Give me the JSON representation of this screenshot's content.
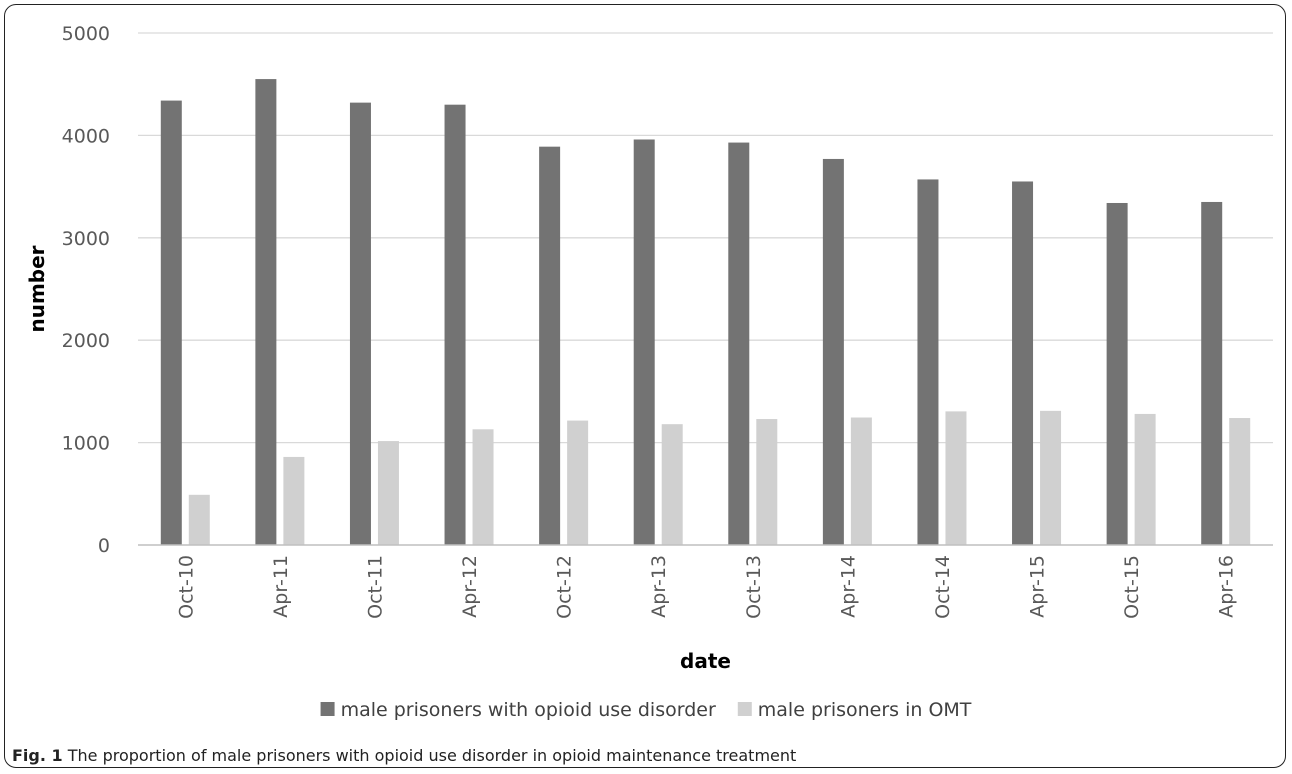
{
  "caption": {
    "label": "Fig. 1",
    "text": "The proportion of male prisoners with opioid use disorder in opioid maintenance treatment"
  },
  "chart_data": {
    "type": "bar",
    "title": "",
    "xlabel": "date",
    "ylabel": "number",
    "ylim": [
      0,
      5000
    ],
    "yticks": [
      0,
      1000,
      2000,
      3000,
      4000,
      5000
    ],
    "grid": true,
    "legend_position": "bottom",
    "categories": [
      "Oct-10",
      "Apr-11",
      "Oct-11",
      "Apr-12",
      "Oct-12",
      "Apr-13",
      "Oct-13",
      "Apr-14",
      "Oct-14",
      "Apr-15",
      "Oct-15",
      "Apr-16"
    ],
    "series": [
      {
        "name": "male prisoners with opioid use disorder",
        "color": "#737373",
        "values": [
          4340,
          4550,
          4320,
          4300,
          3890,
          3960,
          3930,
          3770,
          3570,
          3550,
          3340,
          3350
        ]
      },
      {
        "name": "male prisoners in OMT",
        "color": "#d0d0d0",
        "values": [
          490,
          860,
          1015,
          1130,
          1215,
          1180,
          1230,
          1245,
          1305,
          1310,
          1280,
          1240
        ]
      }
    ]
  }
}
